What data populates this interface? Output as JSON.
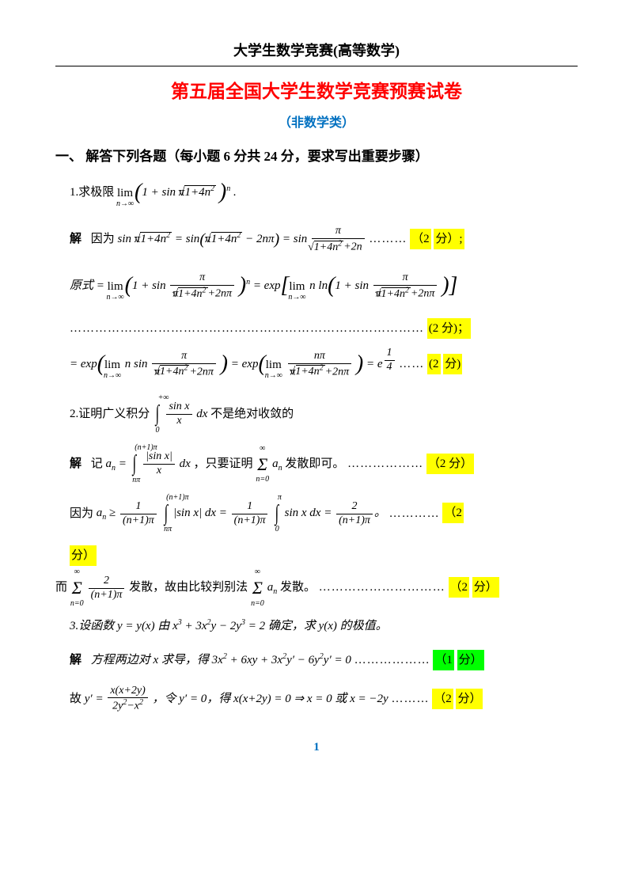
{
  "header_top": "大学生数学竞赛(高等数学)",
  "main_title": "第五届全国大学生数学竞赛预赛试卷",
  "subtitle": "（非数学类）",
  "section_head": "一、  解答下列各题（每小题 6 分共 24 分，要求写出重要步骤）",
  "p1": {
    "q": "1.求极限",
    "q_formula": "lim(1 + sin π√(1+4n²))ⁿ .",
    "s_label": "解",
    "s1_pre": "因为",
    "s1_f": "sin π√(1+4n²) = sin(π√(1+4n²) − 2nπ) = sin (π / (√(1+4n²)+2n))",
    "s1_dots": "………",
    "s1_mark": "（2 分）;",
    "s2_pre": "原式 =",
    "s2_f": "lim[1 + sin(π/(π√(1+4n²)+2nπ))]ⁿ = exp[lim n·ln(1 + sin(π/(π√(1+4n²)+2nπ)))]",
    "s2_dots": "…………………………………………………………………………",
    "s2_mark": "(2 分)；",
    "s3_f": "= exp(lim n·sin(π/(π√(1+4n²)+2nπ))) = exp(lim (nπ/(π√(1+4n²)+2nπ))) = e^(1/4)",
    "s3_dots": "……",
    "s3_mark": "(2 分)"
  },
  "p2": {
    "q": "2.证明广义积分",
    "q_f": "∫₀^+∞ (sin x / x) dx 不是绝对收敛的",
    "s_label": "解",
    "s1_pre": "记",
    "s1_f": "aₙ = ∫ₙπ^((n+1)π) (|sin x|/x) dx ，只要证明 Σₙ₌₀^∞ aₙ 发散即可。",
    "s1_dots": "………………",
    "s1_mark": "（2 分）",
    "s2_pre": "因为",
    "s2_f": "aₙ ≥ (1/((n+1)π)) ∫ₙπ^((n+1)π) |sin x|dx = (1/((n+1)π)) ∫₀^π sin x dx = 2/((n+1)π)。",
    "s2_dots": "…………",
    "s2_mark": "（2",
    "s2_mark2": "分）",
    "s3_pre": "而",
    "s3_f": "Σₙ₌₀^∞ 2/((n+1)π) 发散，故由比较判别法 Σₙ₌₀^∞ aₙ 发散。",
    "s3_dots": "…………………………",
    "s3_mark": "（2 分）"
  },
  "p3": {
    "q": "3.设函数 y = y(x) 由 x³ + 3x²y − 2y³ = 2 确定，求 y(x) 的极值。",
    "s_label": "解",
    "s1": "方程两边对 x 求导，得 3x² + 6xy + 3x²y′ − 6y²y′ = 0",
    "s1_dots": "………………",
    "s1_mark": "（1 分）",
    "s2_pre": "故",
    "s2_f": "y′ = x(x+2y)/(2y²−x²) ，令 y′ = 0，得 x(x+2y) = 0 ⇒ x = 0 或 x = −2y",
    "s2_dots": "………",
    "s2_mark": "（2 分）"
  },
  "page_number": "1",
  "colors": {
    "red": "#ff0000",
    "blue": "#0070c0",
    "yellow": "#ffff00",
    "green": "#00ff00",
    "text": "#000000",
    "bg": "#ffffff"
  }
}
